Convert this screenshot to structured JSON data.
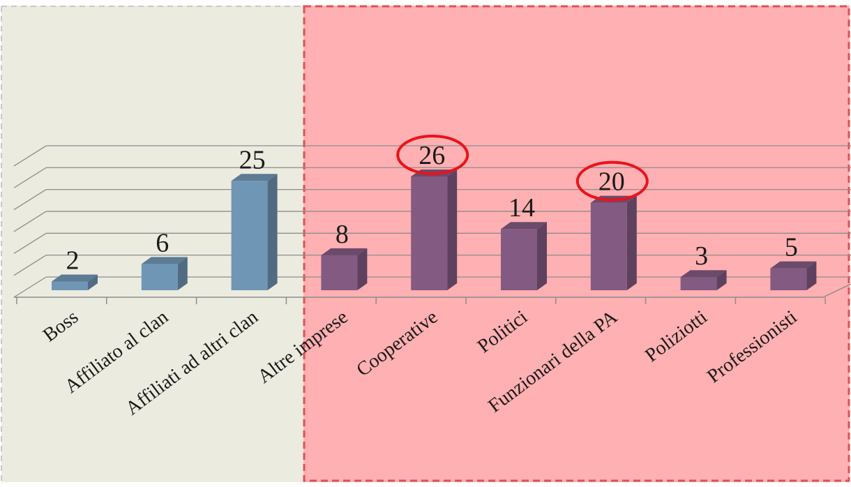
{
  "chart_data": {
    "type": "bar",
    "title": "",
    "xlabel": "",
    "ylabel": "",
    "ylim": [
      0,
      30
    ],
    "grid": true,
    "categories": [
      "Boss",
      "Affiliato al clan",
      "Affiliati ad altri clan",
      "Altre imprese",
      "Cooperative",
      "Politici",
      "Funzionari della PA",
      "Poliziotti",
      "Professionisti"
    ],
    "values": [
      2,
      6,
      25,
      8,
      26,
      14,
      20,
      3,
      5
    ],
    "groups": [
      {
        "members": [
          0,
          1,
          2
        ],
        "color": "#7096b5",
        "background": "#ecebe0"
      },
      {
        "members": [
          3,
          4,
          5,
          6,
          7,
          8
        ],
        "color": "#835a82",
        "background": "#ffb0b2"
      }
    ],
    "highlighted": [
      4,
      6
    ],
    "highlight_color": "#e8141c"
  }
}
